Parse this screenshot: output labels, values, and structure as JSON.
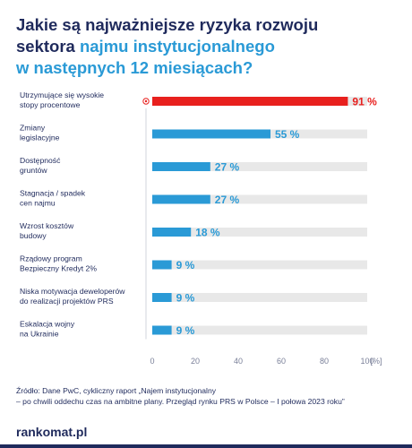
{
  "title": {
    "line1": "Jakie są najważniejsze ryzyka rozwoju",
    "line2_plain": "sektora ",
    "line2_accent": "najmu instytucjonalnego",
    "line3_accent": "w następnych 12 miesiącach?"
  },
  "chart_data": {
    "type": "bar",
    "orientation": "horizontal",
    "categories": [
      "Utrzymujące się wysokie stopy procentowe",
      "Zmiany legislacyjne",
      "Dostępność gruntów",
      "Stagnacja / spadek cen najmu",
      "Wzrost kosztów budowy",
      "Rządowy program Bezpieczny Kredyt 2%",
      "Niska motywacja deweloperów do realizacji projektów PRS",
      "Eskalacja wojny na Ukrainie"
    ],
    "category_lines": [
      [
        "Utrzymujące się wysokie",
        "stopy procentowe"
      ],
      [
        "Zmiany",
        "legislacyjne"
      ],
      [
        "Dostępność",
        "gruntów"
      ],
      [
        "Stagnacja / spadek",
        "cen najmu"
      ],
      [
        "Wzrost kosztów",
        "budowy"
      ],
      [
        "Rządowy program",
        "Bezpieczny Kredyt 2%"
      ],
      [
        "Niska motywacja deweloperów",
        "do realizacji projektów PRS"
      ],
      [
        "Eskalacja wojny",
        "na Ukrainie"
      ]
    ],
    "values": [
      91,
      55,
      27,
      27,
      18,
      9,
      9,
      9
    ],
    "value_labels": [
      "91 %",
      "55 %",
      "27 %",
      "27 %",
      "18 %",
      "9 %",
      "9 %",
      "9 %"
    ],
    "xlim": [
      0,
      100
    ],
    "xticks": [
      "0",
      "20",
      "40",
      "60",
      "80",
      "100"
    ],
    "x_unit": "[%]",
    "colors": {
      "highlight": "#e8201e",
      "bar": "#2a9ad6",
      "track": "#e8e8e8",
      "text": "#1f2a5c"
    },
    "highlight_index": 0,
    "grid": false
  },
  "source": {
    "line1": "Źródło: Dane PwC, cykliczny raport „Najem instytucjonalny",
    "line2": "– po chwili oddechu czas na ambitne plany. Przegląd rynku PRS w Polsce – I połowa 2023 roku”"
  },
  "footer": {
    "logo": "rankomat.pl"
  }
}
